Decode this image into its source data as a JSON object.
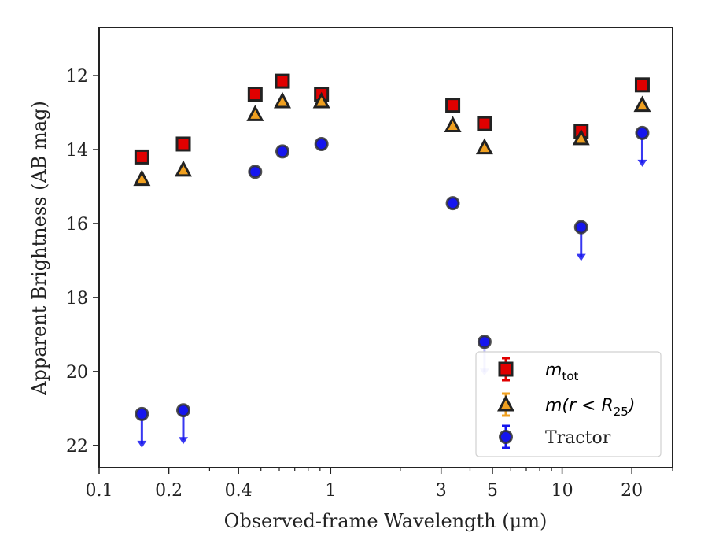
{
  "chart_data": {
    "type": "scatter",
    "xlabel": "Observed-frame Wavelength (μm)",
    "ylabel": "Apparent Brightness (AB mag)",
    "xscale": "log",
    "xlim": [
      0.1,
      30
    ],
    "ylim": [
      22.6,
      10.7
    ],
    "yinverted": true,
    "x_ticks": [
      {
        "value": 0.1,
        "label": "0.1"
      },
      {
        "value": 0.2,
        "label": "0.2"
      },
      {
        "value": 0.4,
        "label": "0.4"
      },
      {
        "value": 1,
        "label": "1"
      },
      {
        "value": 3,
        "label": "3"
      },
      {
        "value": 5,
        "label": "5"
      },
      {
        "value": 10,
        "label": "10"
      },
      {
        "value": 20,
        "label": "20"
      }
    ],
    "y_ticks": [
      {
        "value": 12,
        "label": "12"
      },
      {
        "value": 14,
        "label": "14"
      },
      {
        "value": 16,
        "label": "16"
      },
      {
        "value": 18,
        "label": "18"
      },
      {
        "value": 20,
        "label": "20"
      },
      {
        "value": 22,
        "label": "22"
      }
    ],
    "grid": false,
    "legend_position": "bottom-right",
    "series": [
      {
        "name": "m_tot",
        "legend_main": "m",
        "legend_sub": "tot",
        "marker": "square",
        "color": "#e00000",
        "edge_color": "#222222",
        "x": [
          0.153,
          0.231,
          0.472,
          0.619,
          0.913,
          3.37,
          4.62,
          12.08,
          22.19
        ],
        "y": [
          14.2,
          13.85,
          12.5,
          12.15,
          12.5,
          12.8,
          13.3,
          13.5,
          12.25
        ],
        "upper_limit": [
          false,
          false,
          false,
          false,
          false,
          false,
          false,
          false,
          false
        ]
      },
      {
        "name": "m(r < R25)",
        "legend_main": "m(r < R",
        "legend_sub": "25",
        "legend_close": ")",
        "marker": "triangle",
        "color": "#f0a020",
        "edge_color": "#222222",
        "x": [
          0.153,
          0.231,
          0.472,
          0.619,
          0.913,
          3.37,
          4.62,
          12.08,
          22.19
        ],
        "y": [
          14.8,
          14.55,
          13.05,
          12.7,
          12.7,
          13.35,
          13.95,
          13.7,
          12.8
        ],
        "upper_limit": [
          false,
          false,
          false,
          false,
          false,
          false,
          false,
          false,
          false
        ]
      },
      {
        "name": "Tractor",
        "legend_main": "Tractor",
        "marker": "circle",
        "color": "#1515ee",
        "edge_color": "#333333",
        "x": [
          0.153,
          0.231,
          0.472,
          0.619,
          0.913,
          3.37,
          4.62,
          12.08,
          22.19
        ],
        "y": [
          21.15,
          21.05,
          14.6,
          14.05,
          13.85,
          15.45,
          19.2,
          16.1,
          13.55
        ],
        "upper_limit": [
          true,
          true,
          false,
          false,
          false,
          false,
          true,
          true,
          true
        ]
      }
    ]
  }
}
